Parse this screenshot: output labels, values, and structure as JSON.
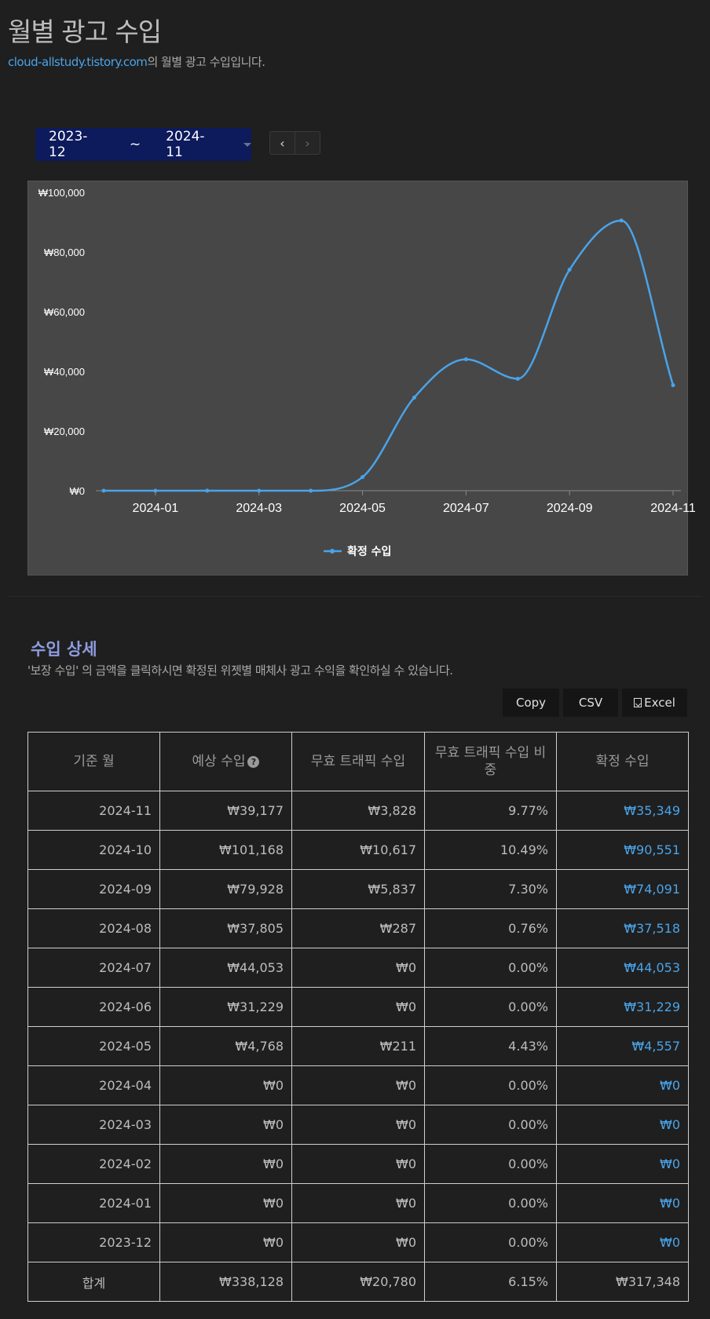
{
  "header": {
    "title": "월별 광고 수입",
    "site": "cloud-allstudy.tistory.com",
    "subtitle_suffix": "의 월별 광고 수입입니다."
  },
  "date_range": {
    "from": "2023-12",
    "tilde": "~",
    "to": "2024-11"
  },
  "pager": {
    "prev_icon": "chevron-left-icon",
    "next_icon": "chevron-right-icon",
    "prev_glyph": "‹",
    "next_glyph": "›"
  },
  "colors": {
    "accent_blue": "#4aa3e8",
    "date_range_bg": "#0d1a5c",
    "chart_bg": "#474747",
    "section_title": "#8e9ce0"
  },
  "chart_data": {
    "type": "line",
    "x": [
      "2023-12",
      "2024-01",
      "2024-02",
      "2024-03",
      "2024-04",
      "2024-05",
      "2024-06",
      "2024-07",
      "2024-08",
      "2024-09",
      "2024-10",
      "2024-11"
    ],
    "xticks": [
      "2024-01",
      "2024-03",
      "2024-05",
      "2024-07",
      "2024-09",
      "2024-11"
    ],
    "yticks": [
      "₩100,000",
      "₩80,000",
      "₩60,000",
      "₩40,000",
      "₩20,000",
      "₩0"
    ],
    "ylim": [
      0,
      100000
    ],
    "grid": false,
    "legend_position": "bottom",
    "series": [
      {
        "name": "확정 수입",
        "color": "#4aa3e8",
        "values": [
          0,
          0,
          0,
          0,
          0,
          4557,
          31229,
          44053,
          37518,
          74091,
          90551,
          35349
        ]
      }
    ]
  },
  "details": {
    "title": "수입 상세",
    "description": "'보장 수입' 의 금액을 클릭하시면 확정된 위젯별 매체사 광고 수익을 확인하실 수 있습니다.",
    "buttons": {
      "copy": "Copy",
      "csv": "CSV",
      "excel": "Excel"
    }
  },
  "table": {
    "headers": {
      "month": "기준 월",
      "expected": "예상 수입",
      "invalid": "무효 트래픽 수입",
      "ratio": "무효 트래픽 수입 비중",
      "confirmed": "확정 수입"
    },
    "help_icon": "question-circle-icon",
    "rows": [
      {
        "month": "2024-11",
        "expected": "₩39,177",
        "invalid": "₩3,828",
        "ratio": "9.77%",
        "confirmed": "₩35,349"
      },
      {
        "month": "2024-10",
        "expected": "₩101,168",
        "invalid": "₩10,617",
        "ratio": "10.49%",
        "confirmed": "₩90,551"
      },
      {
        "month": "2024-09",
        "expected": "₩79,928",
        "invalid": "₩5,837",
        "ratio": "7.30%",
        "confirmed": "₩74,091"
      },
      {
        "month": "2024-08",
        "expected": "₩37,805",
        "invalid": "₩287",
        "ratio": "0.76%",
        "confirmed": "₩37,518"
      },
      {
        "month": "2024-07",
        "expected": "₩44,053",
        "invalid": "₩0",
        "ratio": "0.00%",
        "confirmed": "₩44,053"
      },
      {
        "month": "2024-06",
        "expected": "₩31,229",
        "invalid": "₩0",
        "ratio": "0.00%",
        "confirmed": "₩31,229"
      },
      {
        "month": "2024-05",
        "expected": "₩4,768",
        "invalid": "₩211",
        "ratio": "4.43%",
        "confirmed": "₩4,557"
      },
      {
        "month": "2024-04",
        "expected": "₩0",
        "invalid": "₩0",
        "ratio": "0.00%",
        "confirmed": "₩0"
      },
      {
        "month": "2024-03",
        "expected": "₩0",
        "invalid": "₩0",
        "ratio": "0.00%",
        "confirmed": "₩0"
      },
      {
        "month": "2024-02",
        "expected": "₩0",
        "invalid": "₩0",
        "ratio": "0.00%",
        "confirmed": "₩0"
      },
      {
        "month": "2024-01",
        "expected": "₩0",
        "invalid": "₩0",
        "ratio": "0.00%",
        "confirmed": "₩0"
      },
      {
        "month": "2023-12",
        "expected": "₩0",
        "invalid": "₩0",
        "ratio": "0.00%",
        "confirmed": "₩0"
      }
    ],
    "total": {
      "label": "합계",
      "expected": "₩338,128",
      "invalid": "₩20,780",
      "ratio": "6.15%",
      "confirmed": "₩317,348"
    }
  }
}
